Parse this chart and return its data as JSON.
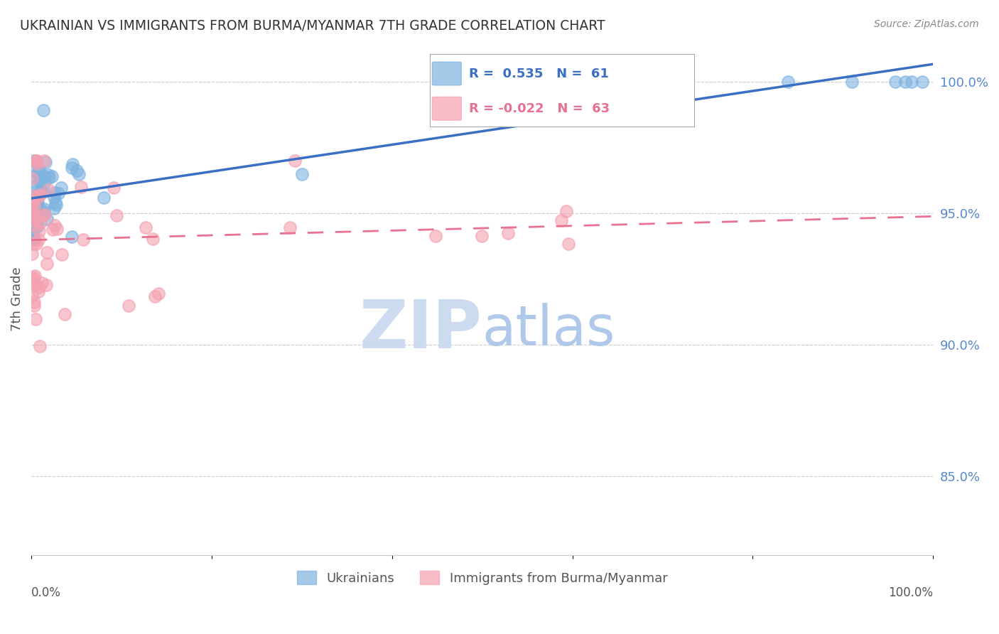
{
  "title": "UKRAINIAN VS IMMIGRANTS FROM BURMA/MYANMAR 7TH GRADE CORRELATION CHART",
  "source": "Source: ZipAtlas.com",
  "ylabel": "7th Grade",
  "legend_blue_label": "Ukrainians",
  "legend_pink_label": "Immigrants from Burma/Myanmar",
  "R_blue": 0.535,
  "N_blue": 61,
  "R_pink": -0.022,
  "N_pink": 63,
  "blue_color": "#7EB3E0",
  "pink_color": "#F4A0B0",
  "blue_line_color": "#3A6FC4",
  "pink_line_color": "#E87090",
  "watermark_zip_color": "#C8D8F0",
  "watermark_atlas_color": "#A8C4E8",
  "background_color": "#FFFFFF",
  "xmin": 0.0,
  "xmax": 1.0,
  "ymin": 0.82,
  "ymax": 1.015,
  "ytick_vals": [
    0.85,
    0.9,
    0.95,
    1.0
  ],
  "ytick_labels": [
    "85.0%",
    "90.0%",
    "95.0%",
    "100.0%"
  ]
}
